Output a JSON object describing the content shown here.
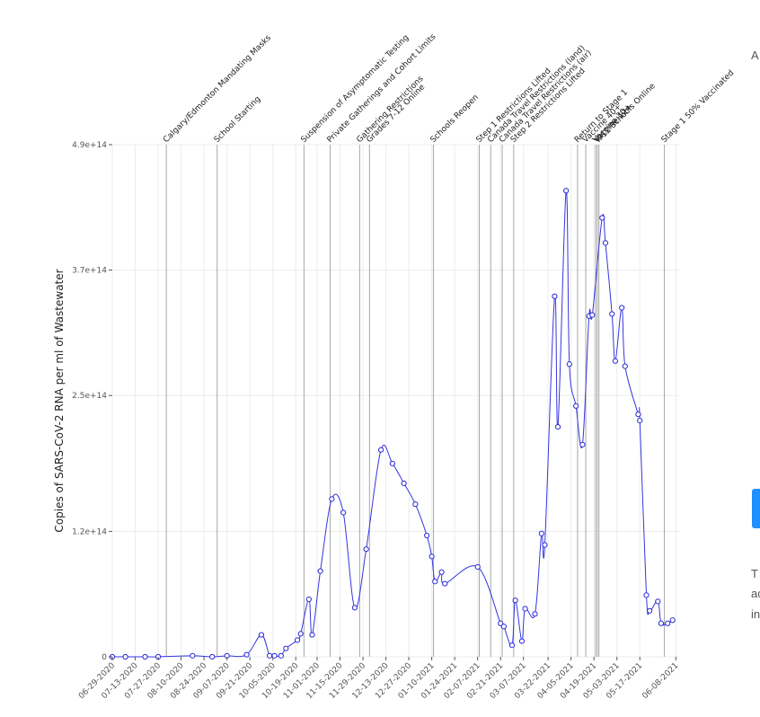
{
  "side_panel": {
    "top_text": "A",
    "heading_text": "",
    "button_color": "#1e90ff",
    "bottom_lines": [
      "T",
      "ac",
      "in"
    ]
  },
  "chart_data": {
    "type": "line",
    "ylabel": "Copies of SARS-CoV-2 RNA per ml of Wastewater",
    "xlabel": "",
    "title": "",
    "ylim": [
      0,
      490000000000000.0
    ],
    "y_ticks": [
      {
        "value": 0,
        "label": "0"
      },
      {
        "value": 120000000000000.0,
        "label": "1.2e+14"
      },
      {
        "value": 250000000000000.0,
        "label": "2.5e+14"
      },
      {
        "value": 370000000000000.0,
        "label": "3.7e+14"
      },
      {
        "value": 490000000000000.0,
        "label": "4.9e+14"
      }
    ],
    "xlim": [
      "2020-06-29",
      "2021-06-10"
    ],
    "x_ticks": [
      {
        "date": "2020-06-29",
        "label": "06-29-2020"
      },
      {
        "date": "2020-07-13",
        "label": "07-13-2020"
      },
      {
        "date": "2020-07-27",
        "label": "07-27-2020"
      },
      {
        "date": "2020-08-10",
        "label": "08-10-2020"
      },
      {
        "date": "2020-08-24",
        "label": "08-24-2020"
      },
      {
        "date": "2020-09-07",
        "label": "09-07-2020"
      },
      {
        "date": "2020-09-21",
        "label": "09-21-2020"
      },
      {
        "date": "2020-10-05",
        "label": "10-05-2020"
      },
      {
        "date": "2020-10-19",
        "label": "10-19-2020"
      },
      {
        "date": "2020-11-01",
        "label": "11-01-2020"
      },
      {
        "date": "2020-11-15",
        "label": "11-15-2020"
      },
      {
        "date": "2020-11-29",
        "label": "11-29-2020"
      },
      {
        "date": "2020-12-13",
        "label": "12-13-2020"
      },
      {
        "date": "2020-12-27",
        "label": "12-27-2020"
      },
      {
        "date": "2021-01-10",
        "label": "01-10-2021"
      },
      {
        "date": "2021-01-24",
        "label": "01-24-2021"
      },
      {
        "date": "2021-02-07",
        "label": "02-07-2021"
      },
      {
        "date": "2021-02-21",
        "label": "02-21-2021"
      },
      {
        "date": "2021-03-07",
        "label": "03-07-2021"
      },
      {
        "date": "2021-03-22",
        "label": "03-22-2021"
      },
      {
        "date": "2021-04-05",
        "label": "04-05-2021"
      },
      {
        "date": "2021-04-19",
        "label": "04-19-2021"
      },
      {
        "date": "2021-05-03",
        "label": "05-03-2021"
      },
      {
        "date": "2021-05-17",
        "label": "05-17-2021"
      },
      {
        "date": "2021-06-08",
        "label": "06-08-2021"
      }
    ],
    "events": [
      {
        "date": "2020-08-01",
        "label": "Calgary/Edmonton Mandating Masks"
      },
      {
        "date": "2020-09-01",
        "label": "School Starting"
      },
      {
        "date": "2020-10-24",
        "label": "Suspension of Asymptomatic Testing"
      },
      {
        "date": "2020-11-09",
        "label": "Private Gatherings and Cohort Limits"
      },
      {
        "date": "2020-11-27",
        "label": "Gathering Restrictions"
      },
      {
        "date": "2020-12-03",
        "label": "Grades 7-12 Online"
      },
      {
        "date": "2021-01-11",
        "label": "Schools Reopen"
      },
      {
        "date": "2021-02-08",
        "label": "Step 1 Restrictions Lifted"
      },
      {
        "date": "2021-02-15",
        "label": "Canada Travel Restrictions (land)"
      },
      {
        "date": "2021-02-22",
        "label": "Canada Travel Restrictions (air)"
      },
      {
        "date": "2021-03-01",
        "label": "Step 2 Restrictions Lifted"
      },
      {
        "date": "2021-04-09",
        "label": "Return to Stage 1"
      },
      {
        "date": "2021-04-14",
        "label": "Vaccine 40+"
      },
      {
        "date": "2021-04-20",
        "label": "Vaccine 30+"
      },
      {
        "date": "2021-04-21",
        "label": "Vaccine 12+"
      },
      {
        "date": "2021-04-22",
        "label": "K-12 Schools Online"
      },
      {
        "date": "2021-06-01",
        "label": "Stage 1 50% Vaccinated"
      }
    ],
    "series": [
      {
        "points": [
          {
            "x": "2020-06-29",
            "y": 0
          },
          {
            "x": "2020-07-07",
            "y": 0
          },
          {
            "x": "2020-07-19",
            "y": 0
          },
          {
            "x": "2020-07-27",
            "y": 0
          },
          {
            "x": "2020-08-17",
            "y": 1000000000000.0
          },
          {
            "x": "2020-08-29",
            "y": 0
          },
          {
            "x": "2020-09-07",
            "y": 1000000000000.0
          },
          {
            "x": "2020-09-19",
            "y": 2000000000000.0
          },
          {
            "x": "2020-09-28",
            "y": 21000000000000.0
          },
          {
            "x": "2020-10-03",
            "y": 1000000000000.0
          },
          {
            "x": "2020-10-06",
            "y": 1000000000000.0
          },
          {
            "x": "2020-10-10",
            "y": 1000000000000.0
          },
          {
            "x": "2020-10-13",
            "y": 8000000000000.0
          },
          {
            "x": "2020-10-20",
            "y": 16000000000000.0
          },
          {
            "x": "2020-10-22",
            "y": 22000000000000.0
          },
          {
            "x": "2020-10-27",
            "y": 55000000000000.0
          },
          {
            "x": "2020-10-29",
            "y": 21000000000000.0
          },
          {
            "x": "2020-11-03",
            "y": 82000000000000.0
          },
          {
            "x": "2020-11-10",
            "y": 151000000000000.0
          },
          {
            "x": "2020-11-17",
            "y": 138000000000000.0
          },
          {
            "x": "2020-11-24",
            "y": 47000000000000.0
          },
          {
            "x": "2020-12-01",
            "y": 103000000000000.0
          },
          {
            "x": "2020-12-10",
            "y": 198000000000000.0
          },
          {
            "x": "2020-12-17",
            "y": 185000000000000.0
          },
          {
            "x": "2020-12-24",
            "y": 166000000000000.0
          },
          {
            "x": "2020-12-31",
            "y": 146000000000000.0
          },
          {
            "x": "2021-01-07",
            "y": 116000000000000.0
          },
          {
            "x": "2021-01-10",
            "y": 96000000000000.0
          },
          {
            "x": "2021-01-12",
            "y": 72000000000000.0
          },
          {
            "x": "2021-01-16",
            "y": 81000000000000.0
          },
          {
            "x": "2021-01-18",
            "y": 70000000000000.0
          },
          {
            "x": "2021-02-07",
            "y": 86000000000000.0
          },
          {
            "x": "2021-02-21",
            "y": 32000000000000.0
          },
          {
            "x": "2021-02-23",
            "y": 29000000000000.0
          },
          {
            "x": "2021-02-28",
            "y": 11000000000000.0
          },
          {
            "x": "2021-03-02",
            "y": 54000000000000.0
          },
          {
            "x": "2021-03-06",
            "y": 15000000000000.0
          },
          {
            "x": "2021-03-08",
            "y": 46000000000000.0
          },
          {
            "x": "2021-03-14",
            "y": 41000000000000.0
          },
          {
            "x": "2021-03-18",
            "y": 118000000000000.0
          },
          {
            "x": "2021-03-20",
            "y": 107000000000000.0
          },
          {
            "x": "2021-03-26",
            "y": 345000000000000.0
          },
          {
            "x": "2021-03-28",
            "y": 220000000000000.0
          },
          {
            "x": "2021-04-02",
            "y": 446000000000000.0
          },
          {
            "x": "2021-04-04",
            "y": 280000000000000.0
          },
          {
            "x": "2021-04-08",
            "y": 240000000000000.0
          },
          {
            "x": "2021-04-12",
            "y": 203000000000000.0
          },
          {
            "x": "2021-04-16",
            "y": 326000000000000.0
          },
          {
            "x": "2021-04-18",
            "y": 327000000000000.0
          },
          {
            "x": "2021-04-24",
            "y": 420000000000000.0
          },
          {
            "x": "2021-04-26",
            "y": 396000000000000.0
          },
          {
            "x": "2021-04-30",
            "y": 328000000000000.0
          },
          {
            "x": "2021-05-02",
            "y": 283000000000000.0
          },
          {
            "x": "2021-05-06",
            "y": 334000000000000.0
          },
          {
            "x": "2021-05-08",
            "y": 278000000000000.0
          },
          {
            "x": "2021-05-16",
            "y": 232000000000000.0
          },
          {
            "x": "2021-05-17",
            "y": 226000000000000.0
          },
          {
            "x": "2021-05-21",
            "y": 59000000000000.0
          },
          {
            "x": "2021-05-23",
            "y": 44000000000000.0
          },
          {
            "x": "2021-05-28",
            "y": 53000000000000.0
          },
          {
            "x": "2021-05-30",
            "y": 32000000000000.0
          },
          {
            "x": "2021-06-03",
            "y": 32000000000000.0
          },
          {
            "x": "2021-06-06",
            "y": 35000000000000.0
          }
        ]
      }
    ]
  }
}
